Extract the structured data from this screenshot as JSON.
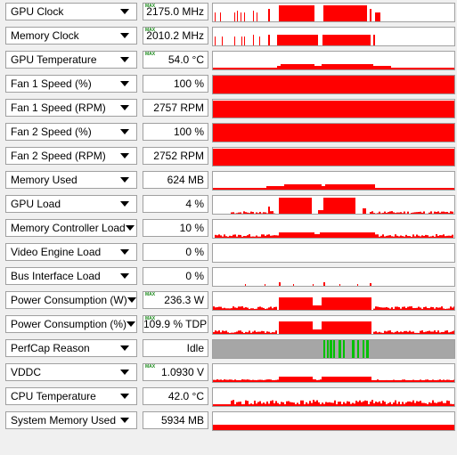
{
  "colors": {
    "graph": "#ff0000",
    "perfcap_idle": "#a6a6a6",
    "perfcap_active": "#00c000",
    "max_tag": "#1a8a1a"
  },
  "sensors": [
    {
      "label": "GPU Clock",
      "value": "2175.0 MHz",
      "max": true,
      "max_tag": "MAX"
    },
    {
      "label": "Memory Clock",
      "value": "2010.2 MHz",
      "max": true,
      "max_tag": "MAX"
    },
    {
      "label": "GPU Temperature",
      "value": "54.0 °C",
      "max": true,
      "max_tag": "MAX"
    },
    {
      "label": "Fan 1 Speed (%)",
      "value": "100 %",
      "max": false
    },
    {
      "label": "Fan 1 Speed (RPM)",
      "value": "2757 RPM",
      "max": false
    },
    {
      "label": "Fan 2 Speed (%)",
      "value": "100 %",
      "max": false
    },
    {
      "label": "Fan 2 Speed (RPM)",
      "value": "2752 RPM",
      "max": false
    },
    {
      "label": "Memory Used",
      "value": "624 MB",
      "max": false
    },
    {
      "label": "GPU Load",
      "value": "4 %",
      "max": false
    },
    {
      "label": "Memory Controller Load",
      "value": "10 %",
      "max": false
    },
    {
      "label": "Video Engine Load",
      "value": "0 %",
      "max": false
    },
    {
      "label": "Bus Interface Load",
      "value": "0 %",
      "max": false
    },
    {
      "label": "Power Consumption (W)",
      "value": "236.3 W",
      "max": true,
      "max_tag": "MAX"
    },
    {
      "label": "Power Consumption (%)",
      "value": "109.9 % TDP",
      "max": true,
      "max_tag": "MAX"
    },
    {
      "label": "PerfCap Reason",
      "value": "Idle",
      "max": false
    },
    {
      "label": "VDDC",
      "value": "1.0930 V",
      "max": true,
      "max_tag": "MAX"
    },
    {
      "label": "CPU Temperature",
      "value": "42.0 °C",
      "max": false
    },
    {
      "label": "System Memory Used",
      "value": "5934 MB",
      "max": false
    }
  ]
}
